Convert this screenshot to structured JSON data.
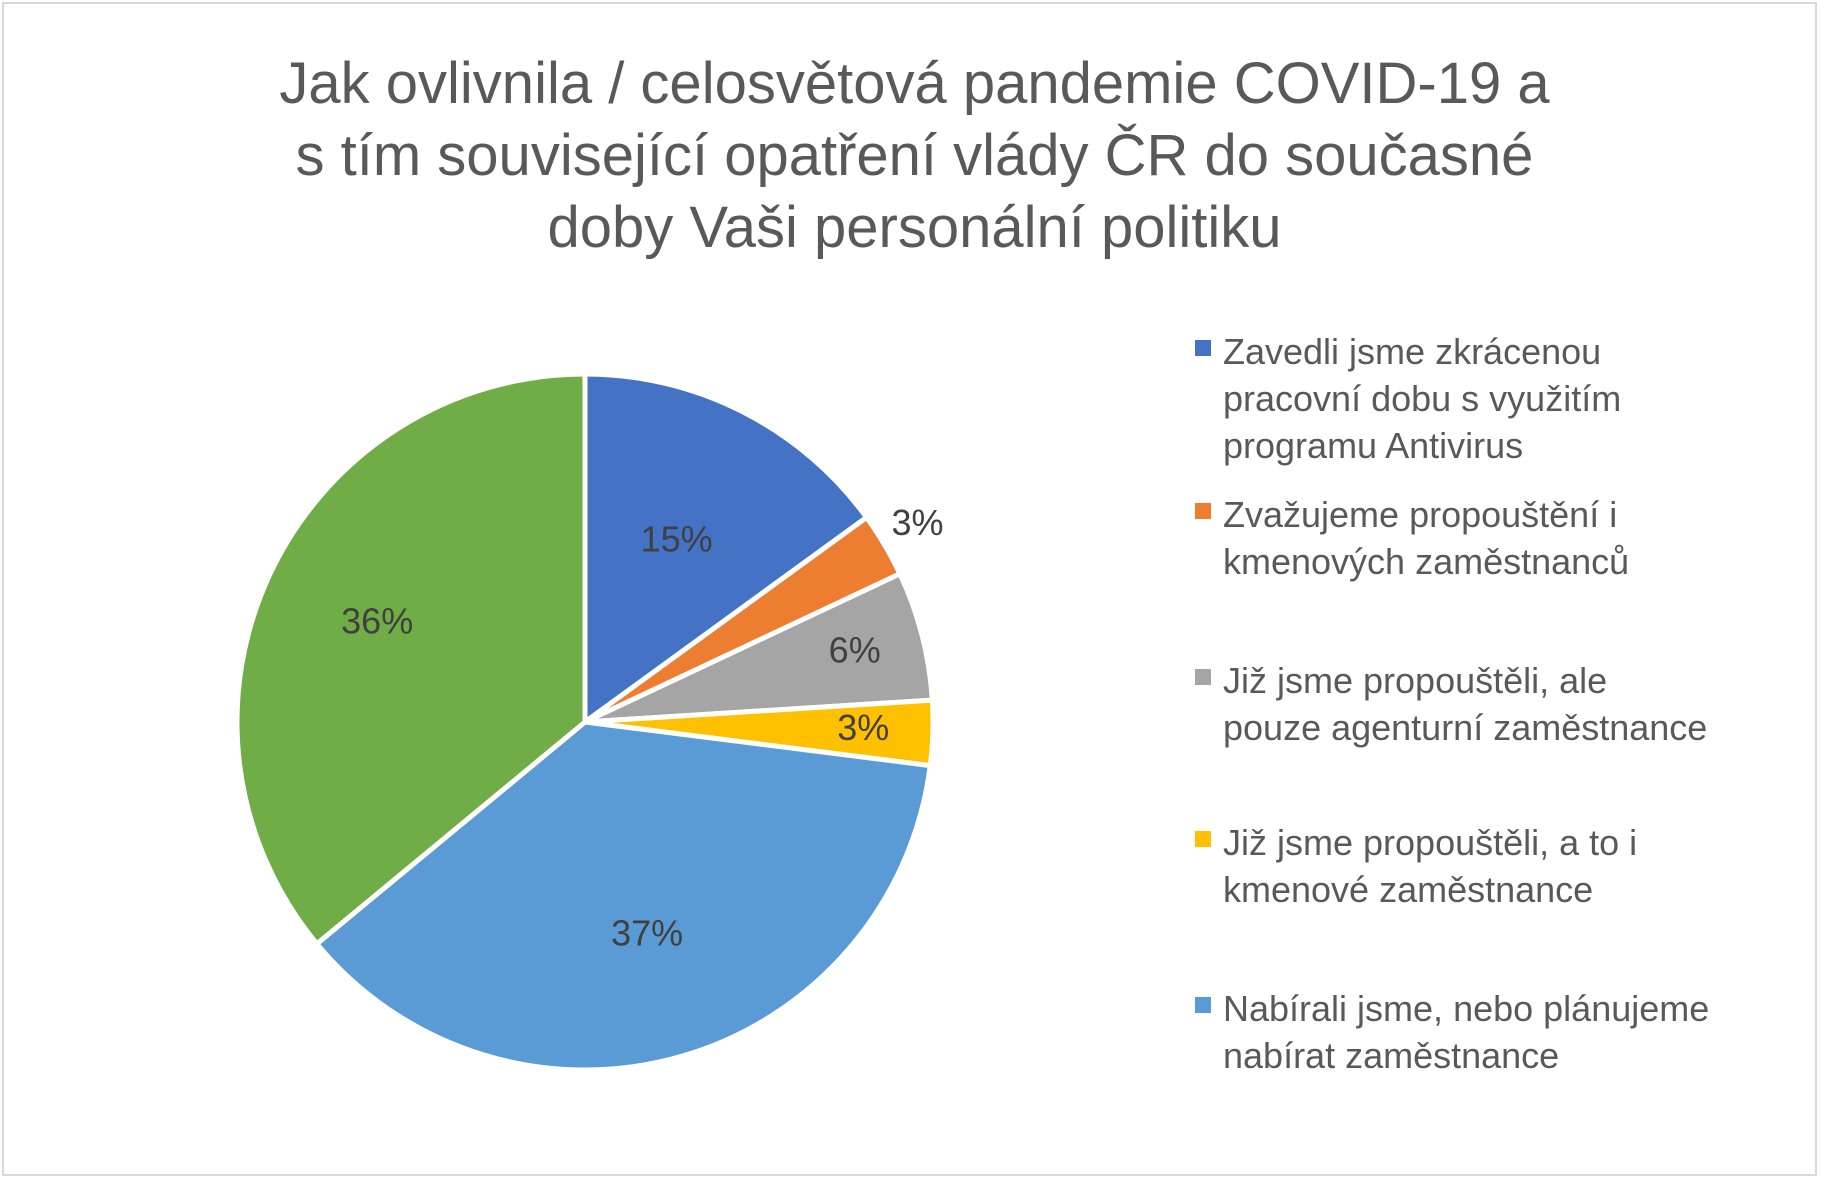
{
  "chart_data": {
    "type": "pie",
    "title": "Jak ovlivnila / celosvětová pandemie COVID-19 a\ns tím související opatření vlády ČR do současné\ndoby Vaši personální politiku",
    "categories": [
      "Zavedli jsme zkrácenou pracovní dobu s využitím programu Antivirus",
      "Zvažujeme propouštění i kmenových zaměstnanců",
      "Již jsme propouštěli, ale pouze agenturní zaměstnance",
      "Již jsme propouštěli, a to i kmenové zaměstnance",
      "Nabírali jsme, nebo plánujeme nabírat zaměstnance",
      ""
    ],
    "legend_labels": [
      "Zavedli jsme zkrácenou\npracovní dobu s využitím\nprogramu Antivirus",
      "Zvažujeme propouštění i\nkmenových zaměstnanců",
      "Již jsme propouštěli, ale\npouze agenturní zaměstnance",
      "Již jsme propouštěli, a to i\nkmenové zaměstnance",
      "Nabírali jsme, nebo plánujeme\nnabírat zaměstnance"
    ],
    "values": [
      15,
      3,
      6,
      3,
      37,
      36
    ],
    "data_labels": [
      "15%",
      "3%",
      "6%",
      "3%",
      "37%",
      "36%"
    ],
    "colors": [
      "#4472c4",
      "#ed7d31",
      "#a5a5a5",
      "#ffc000",
      "#5b9bd5",
      "#70ad47"
    ],
    "legend_position": "right"
  }
}
